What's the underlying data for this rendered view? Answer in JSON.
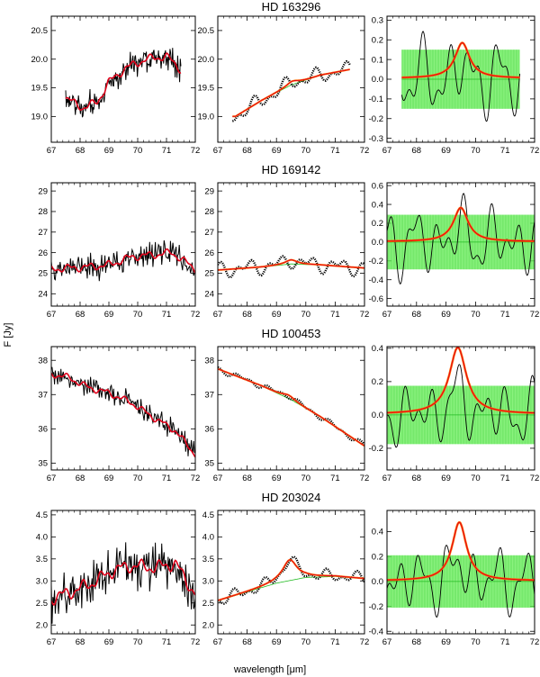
{
  "figure": {
    "ylabel": "F [Jy]",
    "xlabel": "wavelength [μm]"
  },
  "colors": {
    "data": "#000000",
    "fit": "#e0001a",
    "fit_outline": "#ff6a00",
    "continuum": "#22bb22",
    "band": "#66ee55"
  },
  "chart_data": {
    "type": "line",
    "x_ticks": [
      67,
      68,
      69,
      70,
      71,
      72
    ],
    "xlim": [
      67,
      72
    ],
    "rows": [
      {
        "title": "HD 163296",
        "xrange": [
          67.5,
          71.5
        ],
        "raw": {
          "ylim": [
            18.55,
            20.75
          ],
          "ticks": [
            19.0,
            19.5,
            20.0,
            20.5
          ],
          "ticklabels": [
            "19.0",
            "19.5",
            "20.0",
            "20.5"
          ],
          "level": [
            [
              67.5,
              19.32
            ],
            [
              68.1,
              19.15
            ],
            [
              68.6,
              19.25
            ],
            [
              69.0,
              19.6
            ],
            [
              69.6,
              19.85
            ],
            [
              70.3,
              20.0
            ],
            [
              71.0,
              20.05
            ],
            [
              71.5,
              19.82
            ]
          ],
          "noise": 0.28
        },
        "smooth": {
          "ylim": [
            18.55,
            20.75
          ],
          "ticks": [
            19.0,
            19.5,
            20.0,
            20.5
          ],
          "ticklabels": [
            "19.0",
            "19.5",
            "20.0",
            "20.5"
          ],
          "continuum": [
            [
              67.6,
              19.0
            ],
            [
              68.5,
              19.28
            ],
            [
              69.5,
              19.55
            ],
            [
              70.5,
              19.72
            ],
            [
              71.5,
              19.82
            ]
          ],
          "peak": {
            "center": 69.55,
            "amp": 0.06,
            "width": 0.25
          },
          "wiggle": 0.16
        },
        "residual": {
          "ylim": [
            -0.32,
            0.32
          ],
          "ticks": [
            -0.3,
            -0.2,
            -0.1,
            0.0,
            0.1,
            0.2,
            0.3
          ],
          "ticklabels": [
            "-0.3",
            "-0.2",
            "-0.1",
            "0.0",
            "0.1",
            "0.2",
            "0.3"
          ],
          "band": 0.15,
          "peak": {
            "center": 69.55,
            "amp": 0.18,
            "width": 0.3
          },
          "amp": 0.22
        }
      },
      {
        "title": "HD 169142",
        "xrange": [
          67.0,
          72.0
        ],
        "raw": {
          "ylim": [
            23.4,
            29.4
          ],
          "ticks": [
            24,
            25,
            26,
            27,
            28,
            29
          ],
          "ticklabels": [
            "24",
            "25",
            "26",
            "27",
            "28",
            "29"
          ],
          "level": [
            [
              67.0,
              25.2
            ],
            [
              68.2,
              25.3
            ],
            [
              69.0,
              25.4
            ],
            [
              69.8,
              25.8
            ],
            [
              70.6,
              25.9
            ],
            [
              71.2,
              26.0
            ],
            [
              72.0,
              25.2
            ]
          ],
          "noise": 0.75
        },
        "smooth": {
          "ylim": [
            23.4,
            29.4
          ],
          "ticks": [
            24,
            25,
            26,
            27,
            28,
            29
          ],
          "ticklabels": [
            "24",
            "25",
            "26",
            "27",
            "28",
            "29"
          ],
          "continuum": [
            [
              67.0,
              25.15
            ],
            [
              68.5,
              25.3
            ],
            [
              69.5,
              25.45
            ],
            [
              70.5,
              25.4
            ],
            [
              72.0,
              25.25
            ]
          ],
          "peak": {
            "center": 69.5,
            "amp": 0.2,
            "width": 0.25
          },
          "wiggle": 0.45
        },
        "residual": {
          "ylim": [
            -0.68,
            0.63
          ],
          "ticks": [
            -0.6,
            -0.4,
            -0.2,
            0.0,
            0.2,
            0.4,
            0.6
          ],
          "ticklabels": [
            "-0.6",
            "-0.4",
            "-0.2",
            "0.0",
            "0.2",
            "0.4",
            "0.6"
          ],
          "band": 0.29,
          "peak": {
            "center": 69.5,
            "amp": 0.36,
            "width": 0.3
          },
          "amp": 0.42
        }
      },
      {
        "title": "HD 100453",
        "xrange": [
          67.0,
          72.0
        ],
        "raw": {
          "ylim": [
            34.8,
            38.4
          ],
          "ticks": [
            35,
            36,
            37,
            38
          ],
          "ticklabels": [
            "35",
            "36",
            "37",
            "38"
          ],
          "level": [
            [
              67.0,
              37.6
            ],
            [
              67.6,
              37.5
            ],
            [
              68.3,
              37.2
            ],
            [
              69.0,
              37.05
            ],
            [
              69.8,
              36.75
            ],
            [
              70.6,
              36.3
            ],
            [
              71.3,
              35.95
            ],
            [
              72.0,
              35.25
            ]
          ],
          "noise": 0.38
        },
        "smooth": {
          "ylim": [
            34.8,
            38.4
          ],
          "ticks": [
            35,
            36,
            37,
            38
          ],
          "ticklabels": [
            "35",
            "36",
            "37",
            "38"
          ],
          "continuum": [
            [
              67.0,
              37.75
            ],
            [
              68.5,
              37.25
            ],
            [
              69.5,
              36.85
            ],
            [
              70.5,
              36.35
            ],
            [
              72.0,
              35.5
            ]
          ],
          "peak": {
            "center": 69.4,
            "amp": 0.1,
            "width": 0.25
          },
          "wiggle": 0.1
        },
        "residual": {
          "ylim": [
            -0.33,
            0.41
          ],
          "ticks": [
            -0.2,
            0.0,
            0.2,
            0.4
          ],
          "ticklabels": [
            "-0.2",
            "0.0",
            "0.2",
            "0.4"
          ],
          "band": 0.175,
          "peak": {
            "center": 69.4,
            "amp": 0.4,
            "width": 0.35
          },
          "amp": 0.22
        }
      },
      {
        "title": "HD 203024",
        "xrange": [
          67.0,
          72.0
        ],
        "raw": {
          "ylim": [
            1.8,
            4.6
          ],
          "ticks": [
            2.0,
            2.5,
            3.0,
            3.5,
            4.0,
            4.5
          ],
          "ticklabels": [
            "2.0",
            "2.5",
            "3.0",
            "3.5",
            "4.0",
            "4.5"
          ],
          "level": [
            [
              67.0,
              2.6
            ],
            [
              67.7,
              2.75
            ],
            [
              68.4,
              2.95
            ],
            [
              69.2,
              3.25
            ],
            [
              69.8,
              3.35
            ],
            [
              70.6,
              3.3
            ],
            [
              71.3,
              3.4
            ],
            [
              72.0,
              2.7
            ]
          ],
          "noise": 0.6
        },
        "smooth": {
          "ylim": [
            1.8,
            4.6
          ],
          "ticks": [
            2.0,
            2.5,
            3.0,
            3.5,
            4.0,
            4.5
          ],
          "ticklabels": [
            "2.0",
            "2.5",
            "3.0",
            "3.5",
            "4.0",
            "4.5"
          ],
          "continuum": [
            [
              67.0,
              2.55
            ],
            [
              68.0,
              2.75
            ],
            [
              69.0,
              2.95
            ],
            [
              70.0,
              3.08
            ],
            [
              71.0,
              3.1
            ],
            [
              72.0,
              3.05
            ]
          ],
          "peak": {
            "center": 69.45,
            "amp": 0.47,
            "width": 0.3
          },
          "wiggle": 0.16
        },
        "residual": {
          "ylim": [
            -0.42,
            0.57
          ],
          "ticks": [
            -0.4,
            -0.2,
            0.0,
            0.2,
            0.4
          ],
          "ticklabels": [
            "-0.4",
            "-0.2",
            "0.0",
            "0.2",
            "0.4"
          ],
          "band": 0.21,
          "peak": {
            "center": 69.45,
            "amp": 0.47,
            "width": 0.3
          },
          "amp": 0.3
        }
      }
    ]
  }
}
